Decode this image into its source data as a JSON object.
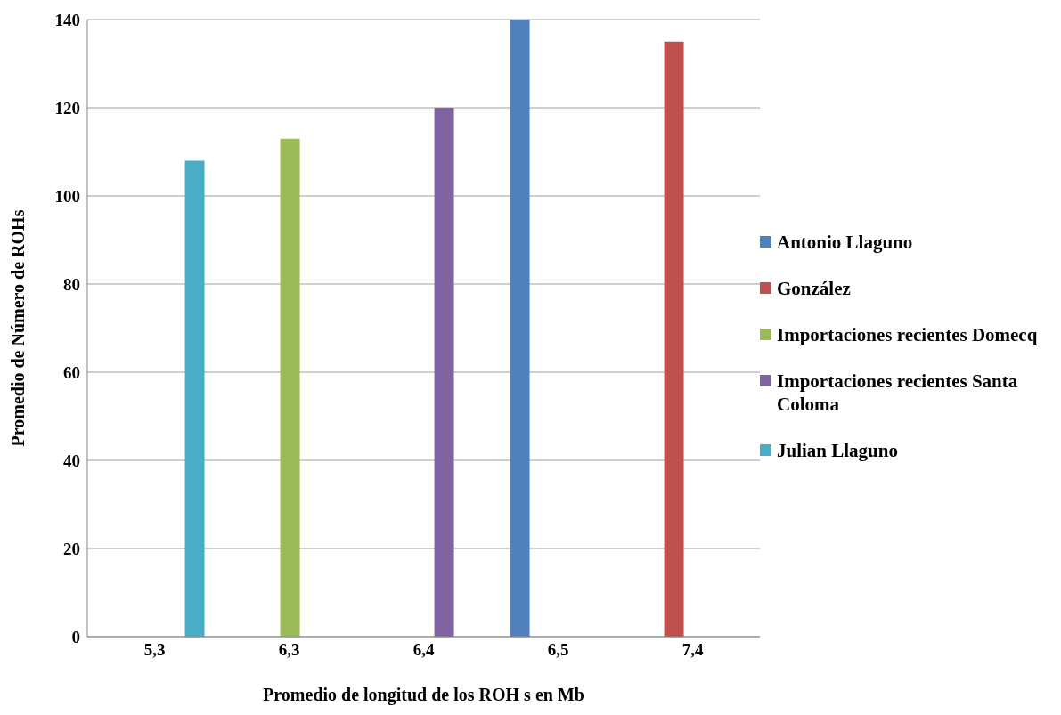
{
  "chart_data": {
    "type": "bar",
    "xlabel": "Promedio de longitud de los ROH s en Mb",
    "ylabel": "Promedio de Número de ROHs",
    "categories": [
      "5,3",
      "6,3",
      "6,4",
      "6,5",
      "7,4"
    ],
    "series": [
      {
        "name": "Antonio Llaguno",
        "color": "#4f81bd",
        "values": [
          null,
          null,
          null,
          140,
          null
        ]
      },
      {
        "name": "González",
        "color": "#c0504d",
        "values": [
          null,
          null,
          null,
          null,
          135
        ]
      },
      {
        "name": "Importaciones recientes Domecq",
        "color": "#9bbb59",
        "values": [
          null,
          113,
          null,
          null,
          null
        ]
      },
      {
        "name": "Importaciones recientes Santa Coloma",
        "color": "#8064a2",
        "values": [
          null,
          null,
          120,
          null,
          null
        ]
      },
      {
        "name": "Julian Llaguno",
        "color": "#4bacc6",
        "values": [
          108,
          null,
          null,
          null,
          null
        ]
      }
    ],
    "ylim": [
      0,
      140
    ],
    "yticks": [
      0,
      20,
      40,
      60,
      80,
      100,
      120,
      140
    ],
    "grid": "y",
    "legend": "right"
  }
}
